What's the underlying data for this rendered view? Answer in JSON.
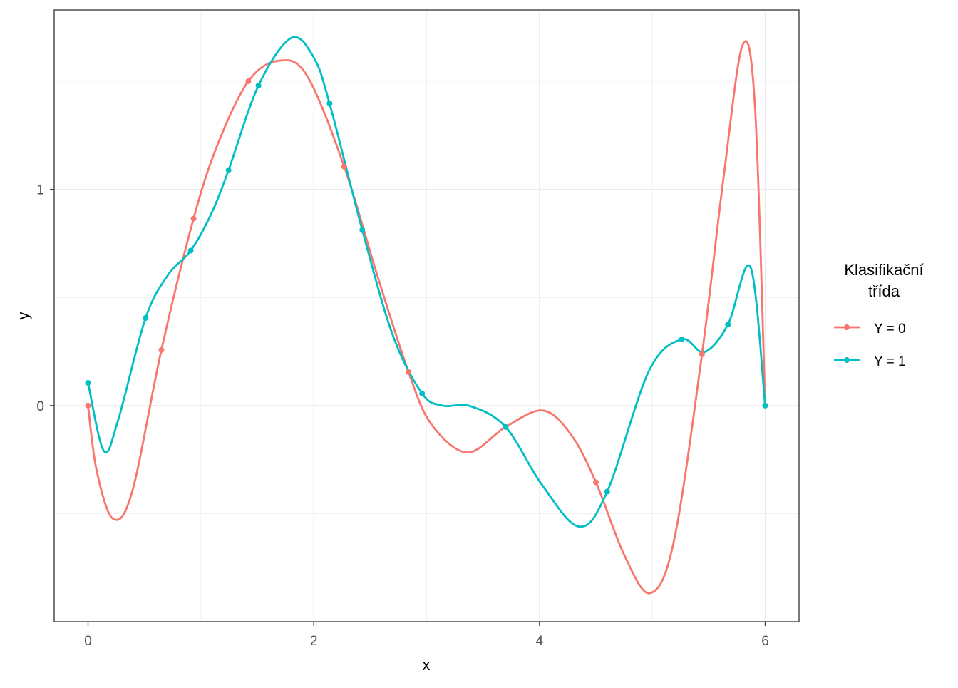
{
  "chart_data": {
    "type": "line",
    "title": "",
    "xlabel": "x",
    "ylabel": "y",
    "xlim": [
      -0.3,
      6.3
    ],
    "ylim": [
      -1.0,
      1.83
    ],
    "x_ticks": [
      0,
      2,
      4,
      6
    ],
    "y_ticks": [
      0,
      1
    ],
    "grid": true,
    "legend": {
      "title_line1": "Klasifikační",
      "title_line2": "třída",
      "placement": "right"
    },
    "series": [
      {
        "name": "Y = 0",
        "color": "#F8766D",
        "points": [
          [
            0,
            0
          ],
          [
            0.65,
            0.257
          ],
          [
            0.935,
            0.865
          ],
          [
            1.42,
            1.5
          ],
          [
            2.27,
            1.105
          ],
          [
            2.84,
            0.155
          ],
          [
            3.7,
            -0.099
          ],
          [
            4.5,
            -0.355
          ],
          [
            5.44,
            0.237
          ],
          [
            6,
            0
          ]
        ],
        "curve": [
          [
            0,
            0
          ],
          [
            0.076,
            -0.3
          ],
          [
            0.22,
            -0.523
          ],
          [
            0.39,
            -0.4
          ],
          [
            0.65,
            0.257
          ],
          [
            0.935,
            0.865
          ],
          [
            1.15,
            1.21
          ],
          [
            1.42,
            1.5
          ],
          [
            1.69,
            1.595
          ],
          [
            1.94,
            1.526
          ],
          [
            2.27,
            1.105
          ],
          [
            2.57,
            0.59
          ],
          [
            2.84,
            0.155
          ],
          [
            3.04,
            -0.085
          ],
          [
            3.36,
            -0.217
          ],
          [
            3.7,
            -0.099
          ],
          [
            4.03,
            -0.023
          ],
          [
            4.28,
            -0.135
          ],
          [
            4.5,
            -0.355
          ],
          [
            4.75,
            -0.69
          ],
          [
            4.98,
            -0.868
          ],
          [
            5.19,
            -0.63
          ],
          [
            5.44,
            0.237
          ],
          [
            5.63,
            1.05
          ],
          [
            5.8,
            1.668
          ],
          [
            5.91,
            1.38
          ],
          [
            6,
            0
          ]
        ]
      },
      {
        "name": "Y = 1",
        "color": "#00BFC4",
        "points": [
          [
            0,
            0.105
          ],
          [
            0.51,
            0.405
          ],
          [
            0.91,
            0.717
          ],
          [
            1.245,
            1.089
          ],
          [
            1.51,
            1.48
          ],
          [
            2.14,
            1.398
          ],
          [
            2.43,
            0.812
          ],
          [
            2.96,
            0.056
          ],
          [
            3.7,
            -0.099
          ],
          [
            4.6,
            -0.398
          ],
          [
            5.26,
            0.306
          ],
          [
            5.67,
            0.375
          ],
          [
            6,
            0
          ]
        ],
        "curve": [
          [
            0,
            0.105
          ],
          [
            0.14,
            -0.21
          ],
          [
            0.265,
            -0.07
          ],
          [
            0.51,
            0.405
          ],
          [
            0.71,
            0.605
          ],
          [
            0.91,
            0.717
          ],
          [
            1.09,
            0.885
          ],
          [
            1.245,
            1.089
          ],
          [
            1.51,
            1.48
          ],
          [
            1.8,
            1.7
          ],
          [
            2.0,
            1.61
          ],
          [
            2.14,
            1.398
          ],
          [
            2.43,
            0.812
          ],
          [
            2.7,
            0.326
          ],
          [
            2.96,
            0.056
          ],
          [
            3.14,
            0
          ],
          [
            3.39,
            -0.003
          ],
          [
            3.7,
            -0.099
          ],
          [
            4.02,
            -0.365
          ],
          [
            4.35,
            -0.56
          ],
          [
            4.6,
            -0.398
          ],
          [
            4.97,
            0.16
          ],
          [
            5.26,
            0.306
          ],
          [
            5.46,
            0.247
          ],
          [
            5.67,
            0.375
          ],
          [
            5.87,
            0.64
          ],
          [
            6,
            0
          ]
        ]
      }
    ]
  }
}
